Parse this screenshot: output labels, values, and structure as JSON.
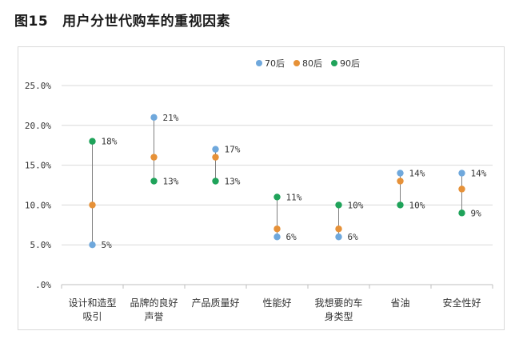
{
  "figure": {
    "number": "图15",
    "title": "用户分世代购车的重视因素"
  },
  "chart_data": {
    "type": "scatter",
    "title": "",
    "xlabel": "",
    "ylabel": "",
    "ylim": [
      0,
      25
    ],
    "y_ticks": [
      "25.0%",
      "20.0%",
      "15.0%",
      "10.0%",
      "5.0%",
      ".0%"
    ],
    "y_tick_values": [
      25,
      20,
      15,
      10,
      5,
      0
    ],
    "grid": true,
    "legend_position": "top-center",
    "categories": [
      [
        "设计和造型",
        "吸引"
      ],
      [
        "品牌的良好",
        "声誉"
      ],
      [
        "产品质量好"
      ],
      [
        "性能好"
      ],
      [
        "我想要的车",
        "身类型"
      ],
      [
        "省油"
      ],
      [
        "安全性好"
      ]
    ],
    "series": [
      {
        "name": "70后",
        "color": "#6fa8dc",
        "values": [
          5,
          21,
          17,
          6,
          6,
          14,
          14
        ]
      },
      {
        "name": "80后",
        "color": "#e69138",
        "values": [
          10,
          16,
          16,
          7,
          7,
          13,
          12
        ]
      },
      {
        "name": "90后",
        "color": "#1fa35a",
        "values": [
          18,
          13,
          13,
          11,
          10,
          10,
          9
        ]
      }
    ],
    "data_labels": [
      {
        "high": "18%",
        "low": "5%"
      },
      {
        "high": "21%",
        "low": "13%"
      },
      {
        "high": "17%",
        "low": "13%"
      },
      {
        "high": "11%",
        "low": "6%"
      },
      {
        "high": "10%",
        "low": "6%"
      },
      {
        "high": "14%",
        "low": "10%"
      },
      {
        "high": "14%",
        "low": "9%"
      }
    ]
  }
}
